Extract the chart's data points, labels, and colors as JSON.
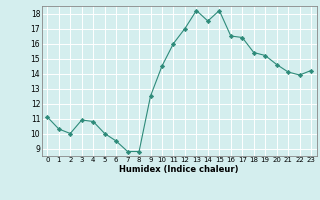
{
  "x": [
    0,
    1,
    2,
    3,
    4,
    5,
    6,
    7,
    8,
    9,
    10,
    11,
    12,
    13,
    14,
    15,
    16,
    17,
    18,
    19,
    20,
    21,
    22,
    23
  ],
  "y": [
    11.1,
    10.3,
    10.0,
    10.9,
    10.8,
    10.0,
    9.5,
    8.8,
    8.8,
    12.5,
    14.5,
    16.0,
    17.0,
    18.2,
    17.5,
    18.2,
    16.5,
    16.4,
    15.4,
    15.2,
    14.6,
    14.1,
    13.9,
    14.2
  ],
  "xlabel": "Humidex (Indice chaleur)",
  "xlim": [
    -0.5,
    23.5
  ],
  "ylim": [
    8.5,
    18.5
  ],
  "yticks": [
    9,
    10,
    11,
    12,
    13,
    14,
    15,
    16,
    17,
    18
  ],
  "xticks": [
    0,
    1,
    2,
    3,
    4,
    5,
    6,
    7,
    8,
    9,
    10,
    11,
    12,
    13,
    14,
    15,
    16,
    17,
    18,
    19,
    20,
    21,
    22,
    23
  ],
  "line_color": "#2e8b7a",
  "marker_color": "#2e8b7a",
  "bg_color": "#d4eeee",
  "grid_color": "#ffffff",
  "spine_color": "#888888"
}
